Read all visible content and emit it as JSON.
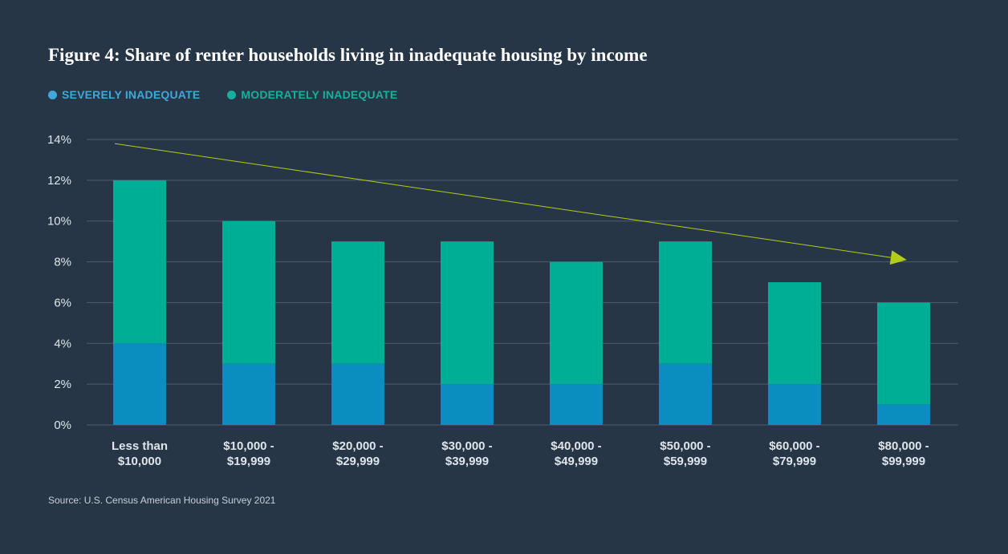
{
  "title": "Figure 4: Share of renter households living in inadequate housing by income",
  "source": "Source: U.S. Census American Housing Survey 2021",
  "chart_data": {
    "type": "bar",
    "stacked": true,
    "categories": [
      [
        "Less than",
        "$10,000"
      ],
      [
        "$10,000 -",
        "$19,999"
      ],
      [
        "$20,000 -",
        "$29,999"
      ],
      [
        "$30,000 -",
        "$39,999"
      ],
      [
        "$40,000 -",
        "$49,999"
      ],
      [
        "$50,000 -",
        "$59,999"
      ],
      [
        "$60,000 -",
        "$79,999"
      ],
      [
        "$80,000 -",
        "$99,999"
      ]
    ],
    "series": [
      {
        "name": "SEVERELY INADEQUATE",
        "color": "#0a8ec0",
        "legend_color": "#3fa7dc",
        "values": [
          4,
          3,
          3,
          2,
          2,
          3,
          2,
          1
        ]
      },
      {
        "name": "MODERATELY INADEQUATE",
        "color": "#00ad95",
        "legend_color": "#17b09a",
        "values": [
          8,
          7,
          6,
          7,
          6,
          6,
          5,
          5
        ]
      }
    ],
    "ylim": [
      0,
      14
    ],
    "yticks": [
      0,
      2,
      4,
      6,
      8,
      10,
      12,
      14
    ],
    "ytick_suffix": "%",
    "grid": true,
    "legend_position": "top-left",
    "trend_arrow": {
      "color": "#b5cc18",
      "from": [
        0,
        13.8
      ],
      "to": [
        7,
        8.2
      ]
    },
    "colors": {
      "background": "#263646",
      "grid": "#4e5e6d",
      "tick_text": "#dfe5ea"
    }
  }
}
